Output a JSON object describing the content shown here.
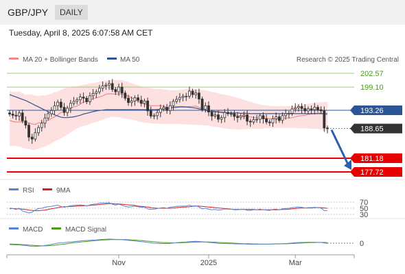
{
  "header": {
    "pair": "GBP/JPY",
    "period": "DAILY",
    "datetime": "Tuesday, April 8, 2025 6:07:58 AM CET"
  },
  "legend": {
    "ma20_bb": "MA 20 + Bollinger Bands",
    "ma50": "MA 50",
    "credit": "Research © 2025 Trading Central",
    "rsi": "RSI",
    "rsi_ma": "9MA",
    "macd": "MACD",
    "macd_signal": "MACD Signal"
  },
  "colors": {
    "ma20": "#ef8a8a",
    "ma50": "#2b5594",
    "bollinger_fill": "#fde0e0",
    "candle": "#333333",
    "resistance": "#9bd06a",
    "support": "#e60000",
    "rsi": "#5a82d6",
    "rsi_ma": "#d22222",
    "macd": "#5a82d6",
    "macd_signal": "#4a9a1a",
    "arrow": "#2b5fad"
  },
  "levels": [
    {
      "value": 202.57,
      "label": "202.57",
      "kind": "resistance"
    },
    {
      "value": 199.1,
      "label": "199.10",
      "kind": "resistance"
    },
    {
      "value": 193.26,
      "label": "193.26",
      "kind": "pivot"
    },
    {
      "value": 188.65,
      "label": "188.65",
      "kind": "last"
    },
    {
      "value": 181.18,
      "label": "181.18",
      "kind": "support"
    },
    {
      "value": 177.72,
      "label": "177.72",
      "kind": "support"
    }
  ],
  "x_labels": [
    "Nov",
    "2025",
    "Mar"
  ],
  "rsi_levels": [
    "70",
    "50",
    "30"
  ],
  "macd_level": "0",
  "chart_data": {
    "type": "candlestick",
    "symbol": "GBP/JPY",
    "timeframe": "daily",
    "price_ylim": [
      177.72,
      202.57
    ],
    "close": [
      192.3,
      192.0,
      191.8,
      192.6,
      190.6,
      189.5,
      186.5,
      186.0,
      187.6,
      188.9,
      190.0,
      191.3,
      192.4,
      193.2,
      194.4,
      195.3,
      194.0,
      192.7,
      193.8,
      195.0,
      195.5,
      195.9,
      196.6,
      196.3,
      195.4,
      196.9,
      197.5,
      197.9,
      198.8,
      199.4,
      199.6,
      200.0,
      198.5,
      197.9,
      199.1,
      197.6,
      196.3,
      195.2,
      195.6,
      196.4,
      195.8,
      195.0,
      195.6,
      193.1,
      191.8,
      191.9,
      192.7,
      193.6,
      194.0,
      193.2,
      194.4,
      195.5,
      196.0,
      196.5,
      196.8,
      196.8,
      198.1,
      197.2,
      197.6,
      196.1,
      193.5,
      194.4,
      192.8,
      191.8,
      192.1,
      191.0,
      191.4,
      192.7,
      192.4,
      192.4,
      191.7,
      191.4,
      191.8,
      192.1,
      190.5,
      190.3,
      190.9,
      191.0,
      191.9,
      191.1,
      190.3,
      190.1,
      191.1,
      191.6,
      190.7,
      191.9,
      192.4,
      192.5,
      193.6,
      193.9,
      194.2,
      193.7,
      193.1,
      193.6,
      193.4,
      194.0,
      193.4,
      193.1,
      188.8,
      188.65
    ],
    "ma20": [
      190.7,
      190.4,
      190.3,
      190.3,
      190.4,
      190.2,
      190.1,
      189.8,
      189.7,
      190.1,
      190.1,
      190.5,
      190.7,
      191.2,
      191.6,
      192.1,
      192.7,
      192.8,
      193.3,
      193.7,
      194.1,
      194.3,
      194.8,
      195.3,
      195.5,
      195.7,
      196.2,
      196.4,
      196.6,
      196.9,
      197.3,
      197.4,
      197.4,
      197.3,
      197.4,
      197.3,
      197.1,
      196.8,
      196.4,
      195.9,
      195.6,
      195.1,
      194.8,
      194.6,
      194.4,
      194.4,
      194.4,
      194.4,
      194.3,
      194.0,
      194.0,
      194.2,
      194.2,
      194.2,
      194.2,
      194.1,
      194.2,
      194.2,
      194.3,
      194.0,
      193.7,
      193.4,
      193.3,
      193.1,
      193.0,
      192.9,
      192.9,
      192.8,
      192.6,
      192.4,
      192.2,
      191.9,
      191.8,
      191.7,
      191.7,
      191.6,
      191.4,
      191.4,
      191.3,
      191.3,
      191.2,
      191.1,
      191.1,
      191.1,
      191.0,
      191.2,
      191.3,
      191.3,
      191.4,
      191.6,
      191.8,
      191.9,
      192.0,
      192.2,
      192.3,
      192.4,
      192.6,
      192.6,
      192.2,
      192.1
    ],
    "ma50": [
      197.2,
      196.9,
      196.6,
      196.3,
      196.0,
      195.7,
      195.3,
      194.9,
      194.5,
      194.1,
      193.7,
      193.3,
      192.9,
      192.5,
      192.1,
      191.8,
      191.5,
      191.4,
      191.4,
      191.5,
      191.6,
      191.8,
      192.0,
      192.3,
      192.5,
      192.7,
      192.9,
      193.1,
      193.2,
      193.3,
      193.4,
      193.4,
      193.4,
      193.4,
      193.4,
      193.4,
      193.4,
      193.4,
      193.4,
      193.4,
      193.4,
      193.4,
      193.4,
      193.4,
      193.4,
      193.4,
      193.4,
      193.5,
      193.6,
      193.7,
      193.8,
      193.9,
      194.0,
      194.1,
      194.1,
      194.1,
      194.0,
      193.9,
      193.8,
      193.6,
      193.4,
      193.2,
      193.1,
      193.0,
      192.9,
      192.8,
      192.7,
      192.6,
      192.6,
      192.6,
      192.6,
      192.6,
      192.5,
      192.5,
      192.5,
      192.4,
      192.4,
      192.4,
      192.4,
      192.4,
      192.4,
      192.4,
      192.4,
      192.4,
      192.4,
      192.4,
      192.4,
      192.4,
      192.4,
      192.4,
      192.4,
      192.4,
      192.4,
      192.4,
      192.4,
      192.4,
      192.4,
      192.4,
      192.4,
      192.4
    ],
    "bollinger_upper": [
      198.2,
      197.9,
      197.9,
      198.0,
      197.6,
      197.1,
      197.3,
      197.2,
      196.9,
      196.8,
      197.0,
      197.0,
      197.2,
      197.4,
      197.8,
      198.0,
      198.4,
      198.8,
      198.9,
      199.1,
      199.2,
      199.3,
      199.5,
      199.7,
      199.8,
      200.0,
      200.1,
      200.3,
      200.5,
      200.6,
      200.7,
      200.8,
      200.9,
      200.9,
      200.9,
      200.9,
      200.6,
      200.4,
      200.1,
      199.8,
      199.6,
      199.2,
      199.0,
      198.9,
      198.8,
      198.7,
      198.6,
      198.6,
      198.5,
      198.4,
      198.3,
      198.3,
      198.3,
      198.4,
      198.5,
      198.6,
      198.6,
      198.6,
      198.6,
      198.5,
      198.4,
      198.3,
      198.1,
      197.9,
      197.7,
      197.5,
      197.3,
      197.2,
      197.0,
      196.8,
      196.6,
      196.4,
      196.1,
      195.9,
      195.6,
      195.4,
      195.1,
      194.9,
      194.7,
      194.6,
      194.5,
      194.4,
      194.3,
      194.3,
      194.3,
      194.3,
      194.3,
      194.3,
      194.3,
      194.4,
      194.5,
      194.6,
      194.7,
      194.9,
      195.0,
      195.1,
      195.2,
      195.3,
      195.3,
      195.4
    ],
    "bollinger_lower": [
      184.3,
      184.3,
      184.2,
      184.1,
      183.8,
      183.6,
      183.5,
      183.3,
      183.3,
      183.6,
      183.8,
      184.1,
      184.5,
      184.9,
      185.4,
      185.8,
      186.2,
      186.6,
      187.1,
      187.6,
      188.2,
      188.7,
      189.0,
      189.3,
      189.5,
      189.8,
      190.1,
      190.3,
      190.6,
      190.9,
      191.2,
      191.4,
      191.6,
      191.6,
      191.5,
      191.4,
      191.2,
      191.0,
      190.9,
      190.7,
      190.5,
      190.3,
      190.2,
      190.1,
      190.0,
      189.9,
      189.9,
      189.8,
      189.8,
      189.8,
      189.8,
      189.8,
      189.8,
      189.8,
      189.7,
      189.7,
      189.7,
      189.6,
      189.6,
      189.6,
      189.5,
      189.4,
      189.4,
      189.2,
      189.1,
      189.0,
      188.8,
      188.7,
      188.6,
      188.5,
      188.5,
      188.4,
      188.4,
      188.5,
      188.5,
      188.6,
      188.6,
      188.6,
      188.6,
      188.7,
      188.7,
      188.8,
      188.8,
      188.8,
      188.8,
      188.8,
      188.8,
      188.8,
      188.8,
      188.8,
      188.7,
      188.7,
      188.7,
      188.7,
      188.6,
      188.6,
      188.5,
      188.4,
      188.2,
      188.0
    ],
    "rsi": [
      48,
      49,
      46,
      50,
      41,
      38,
      35,
      37,
      44,
      49,
      50,
      53,
      55,
      56,
      58,
      60,
      56,
      53,
      56,
      58,
      59,
      60,
      61,
      60,
      57,
      61,
      63,
      64,
      66,
      67,
      67,
      68,
      63,
      60,
      63,
      60,
      56,
      54,
      55,
      57,
      55,
      53,
      54,
      48,
      46,
      47,
      49,
      51,
      52,
      50,
      53,
      55,
      56,
      57,
      57,
      57,
      60,
      57,
      58,
      54,
      48,
      50,
      47,
      45,
      46,
      44,
      45,
      48,
      47,
      47,
      45,
      45,
      46,
      47,
      43,
      43,
      45,
      45,
      47,
      45,
      44,
      43,
      46,
      47,
      45,
      48,
      49,
      50,
      52,
      53,
      54,
      53,
      51,
      52,
      52,
      53,
      52,
      51,
      42,
      42
    ],
    "rsi_ma": [
      50,
      49,
      48,
      48,
      47,
      46,
      44,
      43,
      42,
      42,
      43,
      44,
      46,
      48,
      50,
      52,
      54,
      55,
      55,
      56,
      56,
      57,
      58,
      58,
      58,
      59,
      60,
      61,
      62,
      63,
      64,
      65,
      65,
      64,
      64,
      63,
      62,
      61,
      60,
      59,
      57,
      56,
      55,
      54,
      52,
      51,
      50,
      50,
      50,
      50,
      50,
      51,
      52,
      53,
      54,
      54,
      55,
      56,
      57,
      57,
      56,
      55,
      54,
      53,
      52,
      51,
      50,
      49,
      48,
      47,
      46,
      46,
      46,
      46,
      46,
      46,
      46,
      45,
      45,
      45,
      45,
      45,
      45,
      45,
      45,
      46,
      46,
      47,
      48,
      49,
      50,
      51,
      51,
      51,
      51,
      52,
      52,
      52,
      51,
      50
    ],
    "macd": [
      -0.9,
      -1.0,
      -1.1,
      -1.1,
      -1.3,
      -1.5,
      -1.8,
      -2.0,
      -2.0,
      -1.9,
      -1.8,
      -1.5,
      -1.2,
      -0.8,
      -0.4,
      0.0,
      0.3,
      0.4,
      0.6,
      0.8,
      1.0,
      1.2,
      1.4,
      1.6,
      1.7,
      1.8,
      2.0,
      2.1,
      2.3,
      2.4,
      2.5,
      2.6,
      2.5,
      2.4,
      2.3,
      2.2,
      2.0,
      1.8,
      1.6,
      1.4,
      1.2,
      1.0,
      0.8,
      0.5,
      0.2,
      0.0,
      -0.1,
      -0.2,
      -0.2,
      -0.2,
      -0.1,
      0.1,
      0.3,
      0.5,
      0.7,
      0.8,
      1.0,
      1.1,
      1.2,
      1.1,
      0.9,
      0.7,
      0.5,
      0.3,
      0.1,
      -0.1,
      -0.2,
      -0.2,
      -0.3,
      -0.3,
      -0.4,
      -0.5,
      -0.5,
      -0.5,
      -0.6,
      -0.7,
      -0.7,
      -0.7,
      -0.6,
      -0.6,
      -0.6,
      -0.6,
      -0.5,
      -0.4,
      -0.4,
      -0.3,
      -0.2,
      -0.1,
      0.1,
      0.3,
      0.4,
      0.5,
      0.5,
      0.6,
      0.6,
      0.6,
      0.5,
      0.5,
      0.1,
      -0.1
    ],
    "macd_signal": [
      -0.5,
      -0.6,
      -0.7,
      -0.8,
      -0.9,
      -1.0,
      -1.2,
      -1.3,
      -1.5,
      -1.6,
      -1.7,
      -1.7,
      -1.6,
      -1.5,
      -1.3,
      -1.1,
      -0.8,
      -0.6,
      -0.3,
      0.0,
      0.3,
      0.5,
      0.7,
      0.9,
      1.1,
      1.3,
      1.5,
      1.7,
      1.8,
      2.0,
      2.1,
      2.2,
      2.3,
      2.3,
      2.3,
      2.3,
      2.3,
      2.2,
      2.1,
      2.0,
      1.8,
      1.7,
      1.5,
      1.3,
      1.1,
      0.9,
      0.7,
      0.5,
      0.4,
      0.3,
      0.2,
      0.2,
      0.2,
      0.2,
      0.3,
      0.4,
      0.5,
      0.6,
      0.7,
      0.8,
      0.8,
      0.8,
      0.8,
      0.7,
      0.6,
      0.5,
      0.4,
      0.3,
      0.2,
      0.1,
      0.0,
      -0.1,
      -0.2,
      -0.3,
      -0.3,
      -0.4,
      -0.5,
      -0.5,
      -0.6,
      -0.6,
      -0.6,
      -0.6,
      -0.6,
      -0.5,
      -0.5,
      -0.4,
      -0.4,
      -0.3,
      -0.2,
      -0.1,
      0.0,
      0.1,
      0.2,
      0.3,
      0.4,
      0.4,
      0.5,
      0.5,
      0.5,
      0.4
    ],
    "x_tick_labels": [
      "Nov",
      "2025",
      "Mar"
    ]
  }
}
